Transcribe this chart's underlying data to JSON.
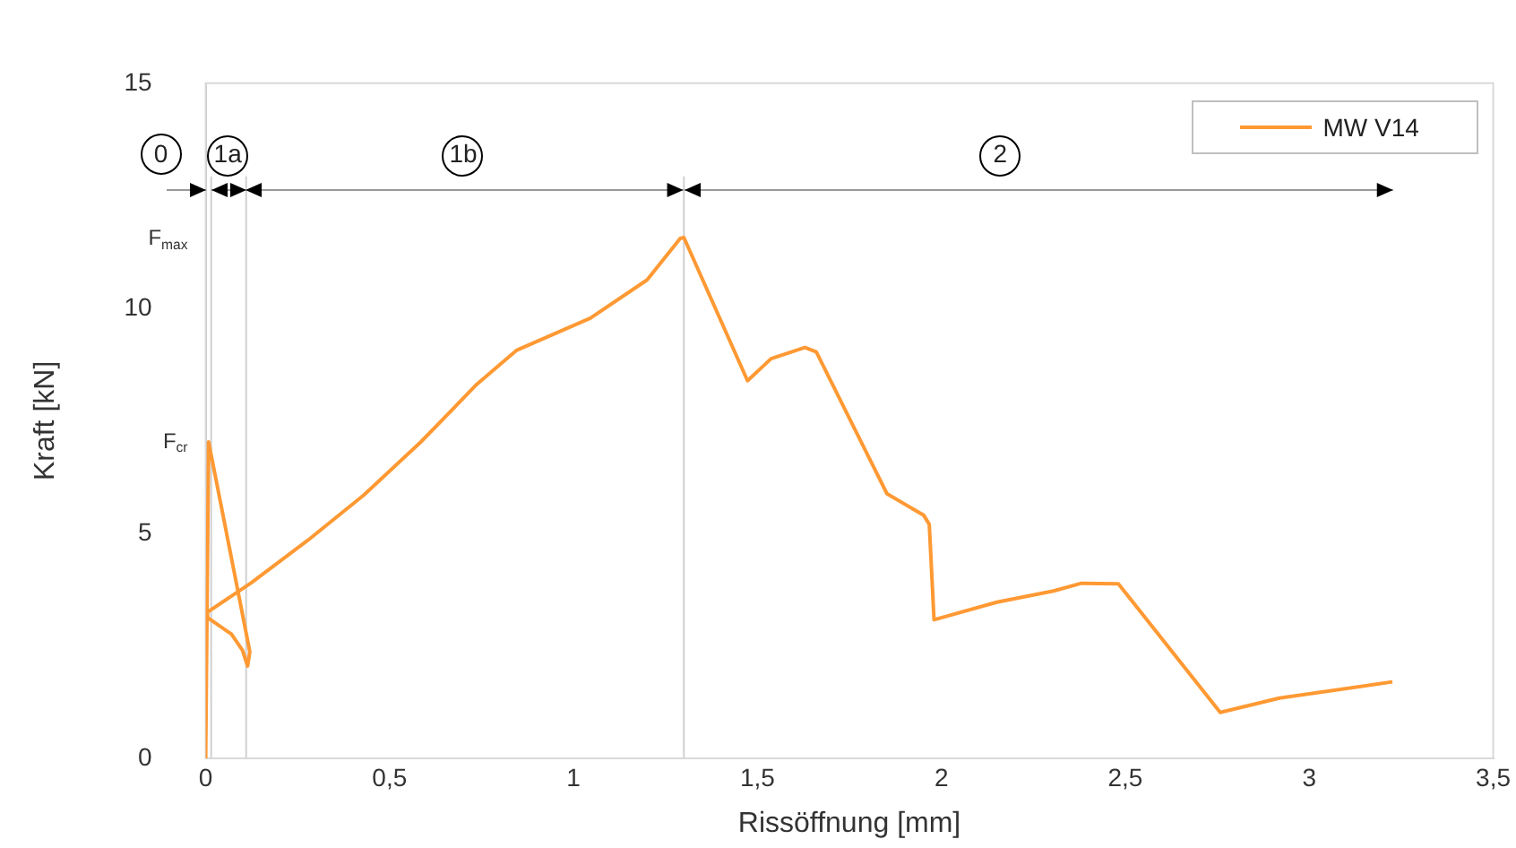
{
  "chart_data": {
    "type": "line",
    "xlabel": "Rissöffnung [mm]",
    "ylabel": "Kraft [kN]",
    "xlim": [
      0,
      3.5
    ],
    "xticks": [
      0,
      {
        "value": 0.5,
        "label": "0,5"
      },
      1,
      {
        "value": 1.5,
        "label": "1,5"
      },
      2,
      {
        "value": 2.5,
        "label": "2,5"
      },
      3,
      {
        "value": 3.5,
        "label": "3,5"
      }
    ],
    "ylim": [
      0,
      15
    ],
    "yticks": [
      0,
      5,
      10,
      15
    ],
    "grid": false,
    "legend": "top right",
    "marker": "none",
    "line_style": "solid",
    "series": [
      {
        "name": "MW V14",
        "color": "#ff9933",
        "x": [
          0,
          0.008,
          0.12,
          0.114,
          0.1,
          0.07,
          0.005,
          0.005,
          0.124,
          0.277,
          0.43,
          0.585,
          0.737,
          0.846,
          1.046,
          1.2,
          1.29,
          1.3,
          1.473,
          1.537,
          1.629,
          1.66,
          1.852,
          1.952,
          1.967,
          1.98,
          2.151,
          2.305,
          2.381,
          2.481,
          2.758,
          2.919,
          3.226
        ],
        "values": [
          0,
          7.03,
          2.37,
          2.05,
          2.4,
          2.76,
          3.13,
          3.25,
          3.9,
          4.84,
          5.85,
          7.03,
          8.31,
          9.07,
          9.78,
          10.63,
          11.55,
          11.57,
          8.39,
          8.88,
          9.13,
          9.03,
          5.88,
          5.4,
          5.2,
          3.08,
          3.47,
          3.72,
          3.89,
          3.88,
          1.02,
          1.34,
          1.7
        ]
      }
    ],
    "ref_lines": [
      {
        "axis": "x",
        "value": 0.015,
        "color": "#d0d0d0"
      },
      {
        "axis": "x",
        "value": 0.11,
        "color": "#d0d0d0"
      },
      {
        "axis": "x",
        "value": 1.3,
        "color": "#d0d0d0"
      }
    ],
    "annotations": [
      {
        "text": "F$_{max}$",
        "x": 0,
        "y": 11.55
      },
      {
        "text": "F$_{cr}$",
        "x": 0,
        "y": 7.03
      },
      "0",
      {
        "text": "1a",
        "x": 0.06,
        "y": 13.4
      },
      {
        "text": "1b",
        "x": 0.7,
        "y": 13.4
      },
      {
        "text": "2",
        "x": 2.16,
        "y": 13.4
      }
    ]
  }
}
